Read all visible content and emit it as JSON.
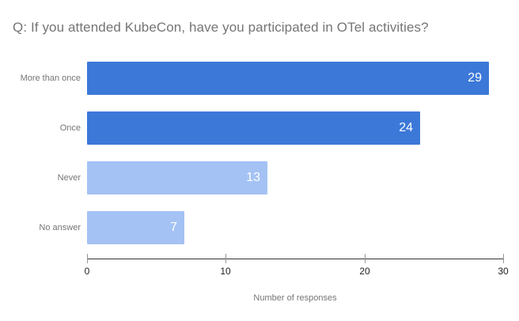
{
  "chart_data": {
    "type": "bar",
    "orientation": "horizontal",
    "title": "Q: If you attended KubeCon, have you participated in OTel activities?",
    "categories": [
      "More than once",
      "Once",
      "Never",
      "No answer"
    ],
    "values": [
      29,
      24,
      13,
      7
    ],
    "bar_colors": [
      "#3c78d8",
      "#3c78d8",
      "#a4c2f4",
      "#a4c2f4"
    ],
    "value_label_color": "#ffffff",
    "xlabel": "Number of responses",
    "ylabel": "",
    "xlim": [
      0,
      30
    ],
    "xticks": [
      0,
      10,
      20,
      30
    ],
    "grid": false,
    "legend": "none"
  },
  "colors": {
    "background": "#ffffff",
    "title_text": "#757575",
    "category_label": "#757575",
    "axis_line": "#333333",
    "tick_mark": "#999999",
    "tick_label": "#222222",
    "axis_title": "#757575"
  }
}
